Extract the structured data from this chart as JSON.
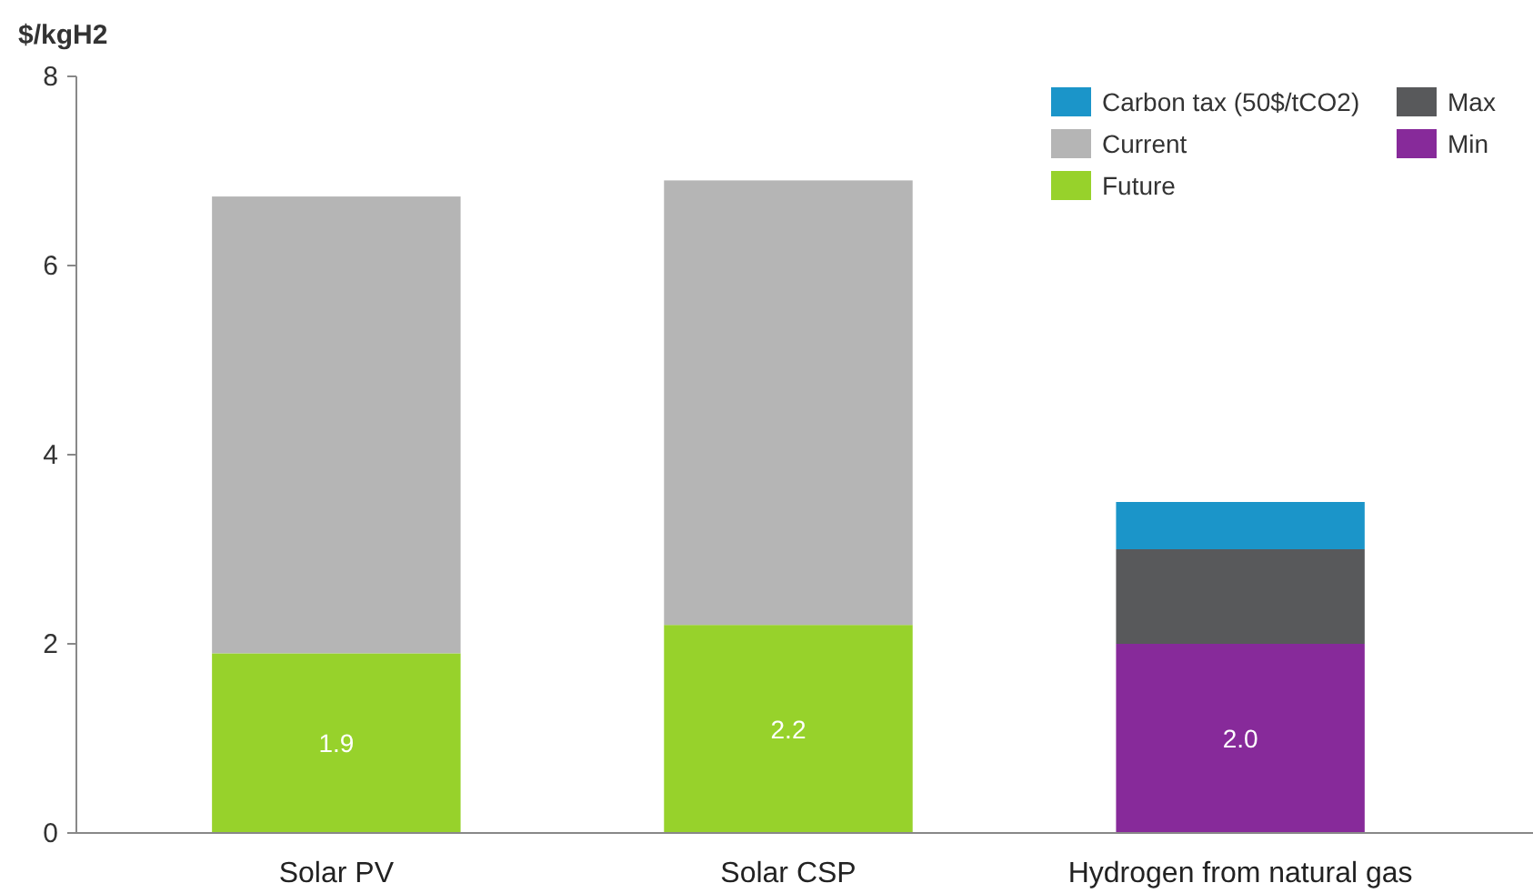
{
  "chart_data": {
    "type": "bar",
    "stacked": true,
    "ylabel": "$/kgH2",
    "categories": [
      "Solar PV",
      "Solar CSP",
      "Hydrogen from natural gas"
    ],
    "series": [
      {
        "name": "Future",
        "color": "#97d22b",
        "values": [
          1.9,
          2.2,
          null
        ],
        "value_labels": [
          "1.9",
          "2.2",
          null
        ]
      },
      {
        "name": "Min",
        "color": "#872a9a",
        "values": [
          null,
          null,
          2.0
        ],
        "value_labels": [
          null,
          null,
          "2.0"
        ]
      },
      {
        "name": "Current",
        "color": "#b5b5b5",
        "values": [
          4.83,
          4.7,
          null
        ]
      },
      {
        "name": "Max",
        "color": "#58595b",
        "values": [
          null,
          null,
          1.0
        ]
      },
      {
        "name": "Carbon tax (50$/tCO2)",
        "color": "#1b95c9",
        "values": [
          null,
          null,
          0.5
        ]
      }
    ],
    "ylim": [
      0,
      8
    ],
    "yticks": [
      0,
      2,
      4,
      6,
      8
    ],
    "grid": false,
    "legend": "top right"
  }
}
